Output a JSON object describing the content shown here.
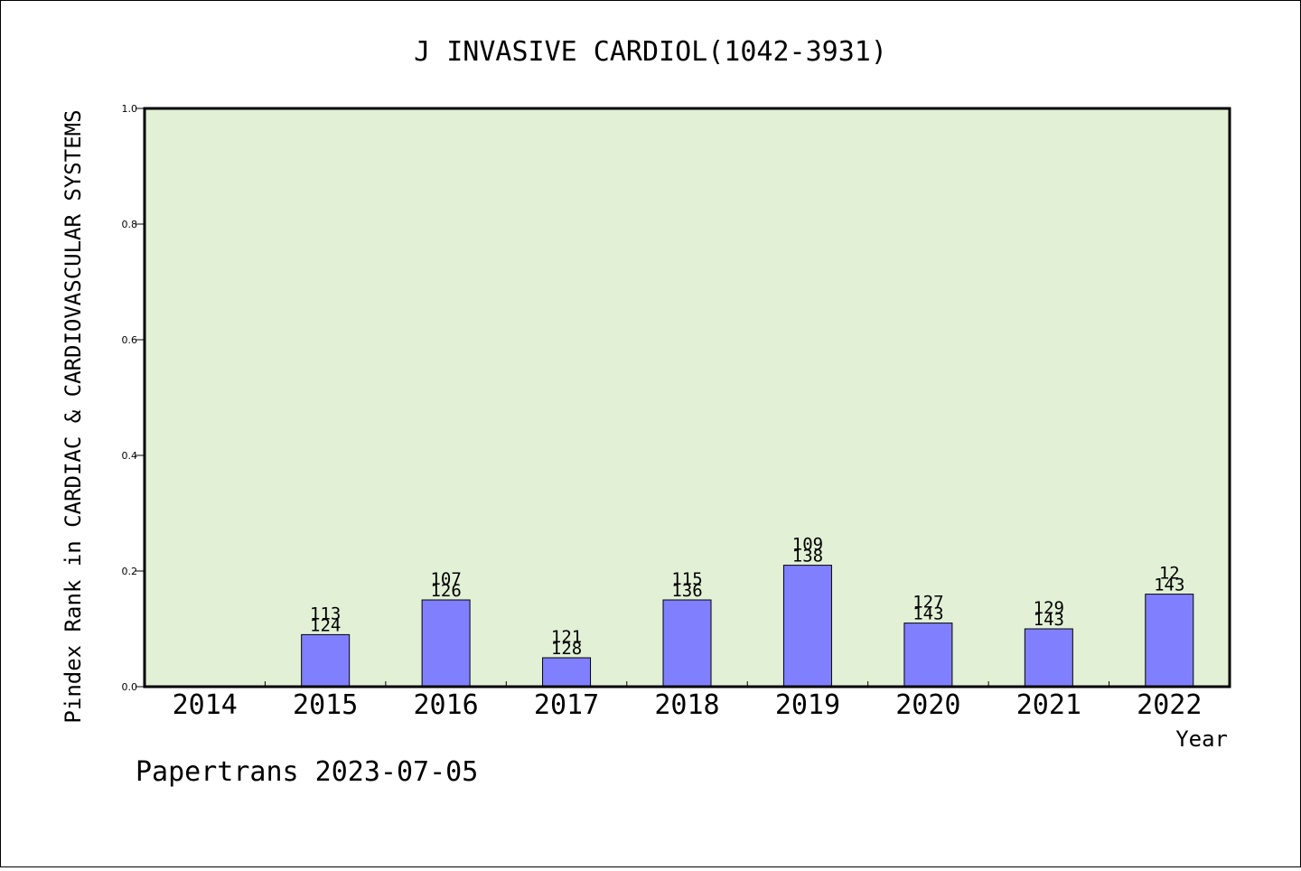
{
  "chart_data": {
    "type": "bar",
    "title": "J INVASIVE CARDIOL(1042-3931)",
    "xlabel": "Year",
    "ylabel": "Pindex Rank in CARDIAC & CARDIOVASCULAR SYSTEMS",
    "ylim": [
      0,
      1.0
    ],
    "yticks": [
      "0.0",
      "0.2",
      "0.4",
      "0.6",
      "0.8",
      "1.0"
    ],
    "grid": false,
    "categories": [
      "2014",
      "2015",
      "2016",
      "2017",
      "2018",
      "2019",
      "2020",
      "2021",
      "2022"
    ],
    "values": [
      0,
      0.09,
      0.15,
      0.05,
      0.15,
      0.21,
      0.11,
      0.1,
      0.16
    ],
    "labels_top": [
      "",
      "113",
      "107",
      "121",
      "115",
      "109",
      "127",
      "129",
      "12"
    ],
    "labels_bottom": [
      "",
      "124",
      "126",
      "128",
      "136",
      "138",
      "143",
      "143",
      "143"
    ],
    "colors": {
      "plot_background": "#e2f0d6",
      "bar_fill": "#8080ff",
      "axis": "#000000"
    }
  },
  "footer": "Papertrans 2023-07-05"
}
